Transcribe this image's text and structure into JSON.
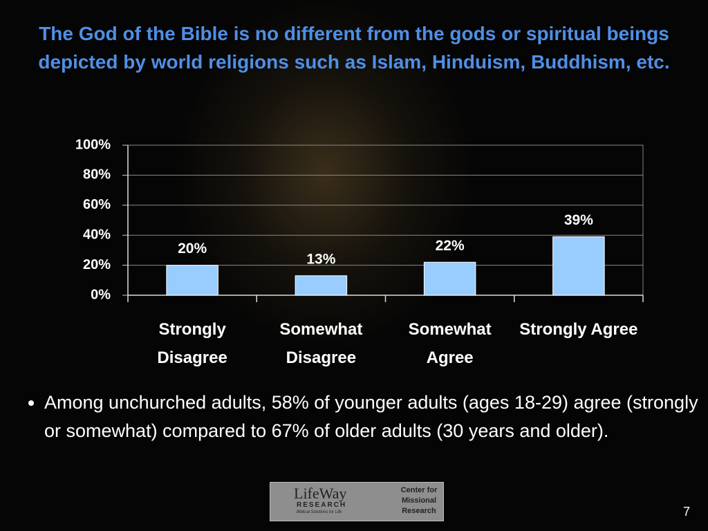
{
  "chart_data": {
    "type": "bar",
    "title": "The God of the Bible is no different from the gods or spiritual beings depicted by world religions such as Islam, Hinduism, Buddhism, etc.",
    "categories": [
      "Strongly Disagree",
      "Somewhat Disagree",
      "Somewhat Agree",
      "Strongly Agree"
    ],
    "values": [
      20,
      13,
      22,
      39
    ],
    "value_labels": [
      "20%",
      "13%",
      "22%",
      "39%"
    ],
    "color": "#99ccff",
    "ylim": [
      0,
      100
    ],
    "yticks": [
      {
        "value": 0,
        "label": "0%"
      },
      {
        "value": 20,
        "label": "20%"
      },
      {
        "value": 40,
        "label": "40%"
      },
      {
        "value": 60,
        "label": "60%"
      },
      {
        "value": 80,
        "label": "80%"
      },
      {
        "value": 100,
        "label": "100%"
      }
    ],
    "grid": true
  },
  "bullets": [
    "Among unchurched adults, 58% of younger adults (ages 18-29) agree (strongly or somewhat) compared to 67% of older adults (30 years and older)."
  ],
  "logos": {
    "lifeway": "LifeWay",
    "research": "RESEARCH",
    "tagline": "Biblical Solutions for Life",
    "center": "Center for Missional Research"
  },
  "page_number": "7"
}
